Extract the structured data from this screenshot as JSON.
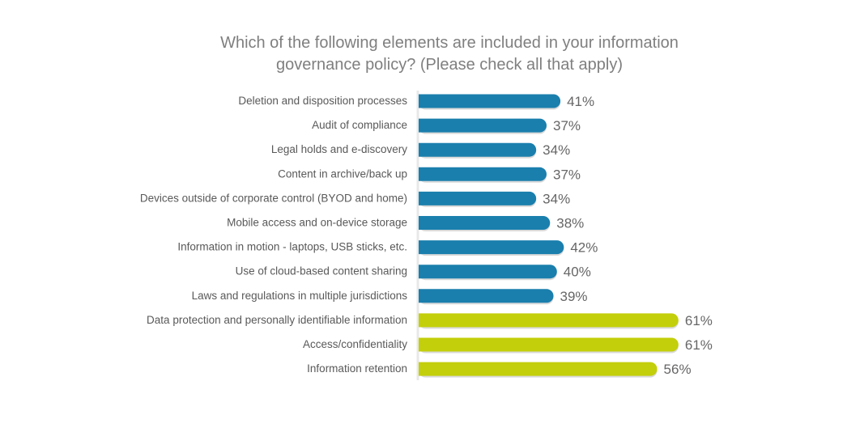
{
  "chart_data": {
    "type": "bar",
    "orientation": "horizontal",
    "title_lines": [
      "Which of the following elements are included in your information",
      "governance policy? (Please check all that apply)"
    ],
    "categories": [
      "Deletion and disposition processes",
      "Audit of compliance",
      "Legal holds and e-discovery",
      "Content in archive/back up",
      "Devices outside of corporate control (BYOD and home)",
      "Mobile access and on-device storage",
      "Information in motion - laptops, USB sticks, etc.",
      "Use of cloud-based content sharing",
      "Laws and regulations in multiple jurisdictions",
      "Data protection and personally identifiable information",
      "Access/confidentiality",
      "Information retention"
    ],
    "values": [
      41,
      37,
      34,
      37,
      34,
      38,
      42,
      40,
      39,
      61,
      61,
      56
    ],
    "data_labels": [
      "41%",
      "37%",
      "34%",
      "37%",
      "34%",
      "38%",
      "42%",
      "40%",
      "39%",
      "61%",
      "61%",
      "56%"
    ],
    "bar_colors": [
      "#1a7fad",
      "#1a7fad",
      "#1a7fad",
      "#1a7fad",
      "#1a7fad",
      "#1a7fad",
      "#1a7fad",
      "#1a7fad",
      "#1a7fad",
      "#c3cf0a",
      "#c3cf0a",
      "#c3cf0a"
    ],
    "grid": false,
    "legend": "none"
  }
}
